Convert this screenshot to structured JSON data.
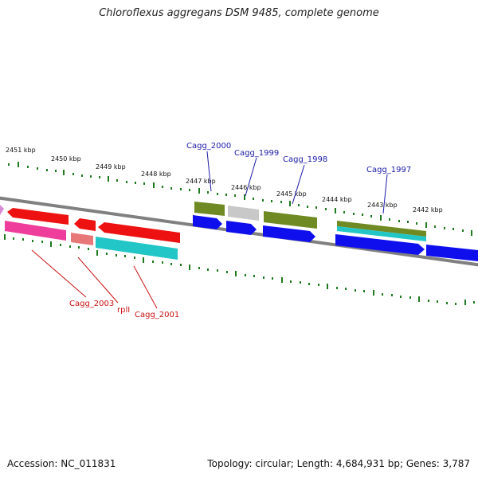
{
  "title": "Chloroflexus aggregans DSM 9485, complete genome",
  "footer": {
    "accession": "Accession: NC_011831",
    "topology": "Topology: circular; Length: 4,684,931 bp; Genes: 3,787"
  },
  "scale_labels": [
    "2451 kbp",
    "2450 kbp",
    "2449 kbp",
    "2448 kbp",
    "2447 kbp",
    "2446 kbp",
    "2445 kbp",
    "2444 kbp",
    "2443 kbp",
    "2442 kbp"
  ],
  "gene_labels": {
    "cagg_2000": "Cagg_2000",
    "cagg_1999": "Cagg_1999",
    "cagg_1998": "Cagg_1998",
    "cagg_1997": "Cagg_1997",
    "cagg_2003": "Cagg_2003",
    "rpli": "rplI",
    "cagg_2001": "Cagg_2001"
  },
  "colors": {
    "backbone": "#808080",
    "tick_green": "#1f7a1f",
    "red_gene": "#ee1111",
    "pink_gene": "#ee3d9a",
    "salmon_gene": "#e87878",
    "cyan_gene": "#22c6c6",
    "olive_gene": "#6f8a22",
    "gray_gene": "#c8c8c8",
    "blue_gene": "#0f0fee",
    "label_blue": "#1a1aa8",
    "label_red": "#cc1111"
  }
}
